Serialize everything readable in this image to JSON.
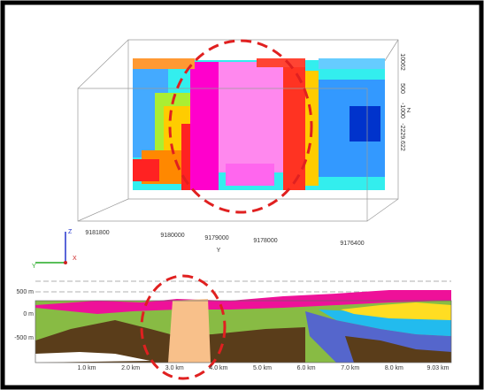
{
  "block": {
    "y_ticks": [
      "9181800",
      "9180000",
      "9179000",
      "9178000",
      "9176400"
    ],
    "y_label": "Y",
    "z_ticks": [
      "10062",
      "500",
      "-1000",
      "-2229.622"
    ],
    "z_label": "Z"
  },
  "triad": {
    "z": "Z",
    "y": "Y",
    "x": "X"
  },
  "section": {
    "depth_labels": [
      "500 m",
      "0 m",
      "-500 m"
    ],
    "distance_labels": [
      "1.0 km",
      "2.0 km",
      "3.0 km",
      "4.0 km",
      "5.0 km",
      "6.0 km",
      "7.0 km",
      "8.0 km",
      "9.03 km"
    ]
  }
}
